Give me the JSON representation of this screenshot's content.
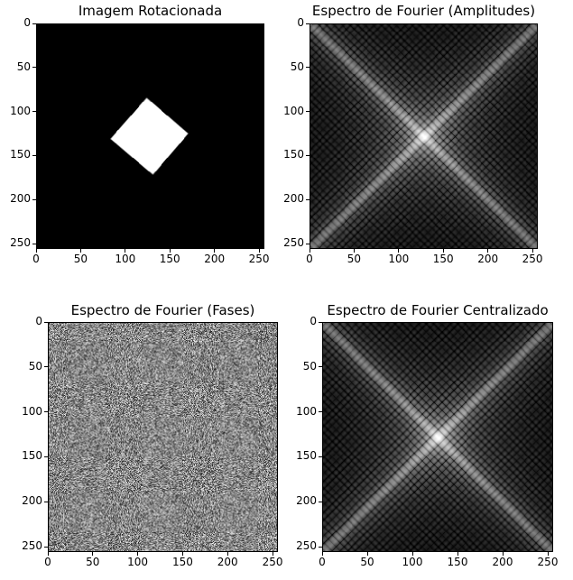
{
  "chart_data": [
    {
      "type": "heatmap",
      "title": "Imagem Rotacionada",
      "content": "rotated-square",
      "xlim": [
        0,
        256
      ],
      "ylim": [
        256,
        0
      ],
      "xticks": [
        0,
        50,
        100,
        150,
        200,
        250
      ],
      "yticks": [
        0,
        50,
        100,
        150,
        200,
        250
      ],
      "xtick_labels": [
        "0",
        "50",
        "100",
        "150",
        "200",
        "250"
      ],
      "ytick_labels": [
        "0",
        "50",
        "100",
        "150",
        "200",
        "250"
      ],
      "square_vertices": [
        [
          124,
          84
        ],
        [
          171,
          125
        ],
        [
          131,
          172
        ],
        [
          83,
          131
        ]
      ],
      "colormap": "gray"
    },
    {
      "type": "heatmap",
      "title": "Espectro de Fourier (Amplitudes)",
      "content": "fourier-amplitude",
      "xlim": [
        0,
        256
      ],
      "ylim": [
        256,
        0
      ],
      "xticks": [
        0,
        50,
        100,
        150,
        200,
        250
      ],
      "yticks": [
        0,
        50,
        100,
        150,
        200,
        250
      ],
      "xtick_labels": [
        "0",
        "50",
        "100",
        "150",
        "200",
        "250"
      ],
      "ytick_labels": [
        "0",
        "50",
        "100",
        "150",
        "200",
        "250"
      ],
      "peak_center": [
        128,
        128
      ],
      "colormap": "gray"
    },
    {
      "type": "heatmap",
      "title": "Espectro de Fourier (Fases)",
      "content": "fourier-phase",
      "xlim": [
        0,
        256
      ],
      "ylim": [
        256,
        0
      ],
      "xticks": [
        0,
        50,
        100,
        150,
        200,
        250
      ],
      "yticks": [
        0,
        50,
        100,
        150,
        200,
        250
      ],
      "xtick_labels": [
        "0",
        "50",
        "100",
        "150",
        "200",
        "250"
      ],
      "ytick_labels": [
        "0",
        "50",
        "100",
        "150",
        "200",
        "250"
      ],
      "colormap": "gray"
    },
    {
      "type": "heatmap",
      "title": "Espectro de Fourier Centralizado",
      "content": "fourier-amplitude",
      "xlim": [
        0,
        256
      ],
      "ylim": [
        256,
        0
      ],
      "xticks": [
        0,
        50,
        100,
        150,
        200,
        250
      ],
      "yticks": [
        0,
        50,
        100,
        150,
        200,
        250
      ],
      "xtick_labels": [
        "0",
        "50",
        "100",
        "150",
        "200",
        "250"
      ],
      "ytick_labels": [
        "0",
        "50",
        "100",
        "150",
        "200",
        "250"
      ],
      "peak_center": [
        128,
        128
      ],
      "colormap": "gray"
    }
  ]
}
